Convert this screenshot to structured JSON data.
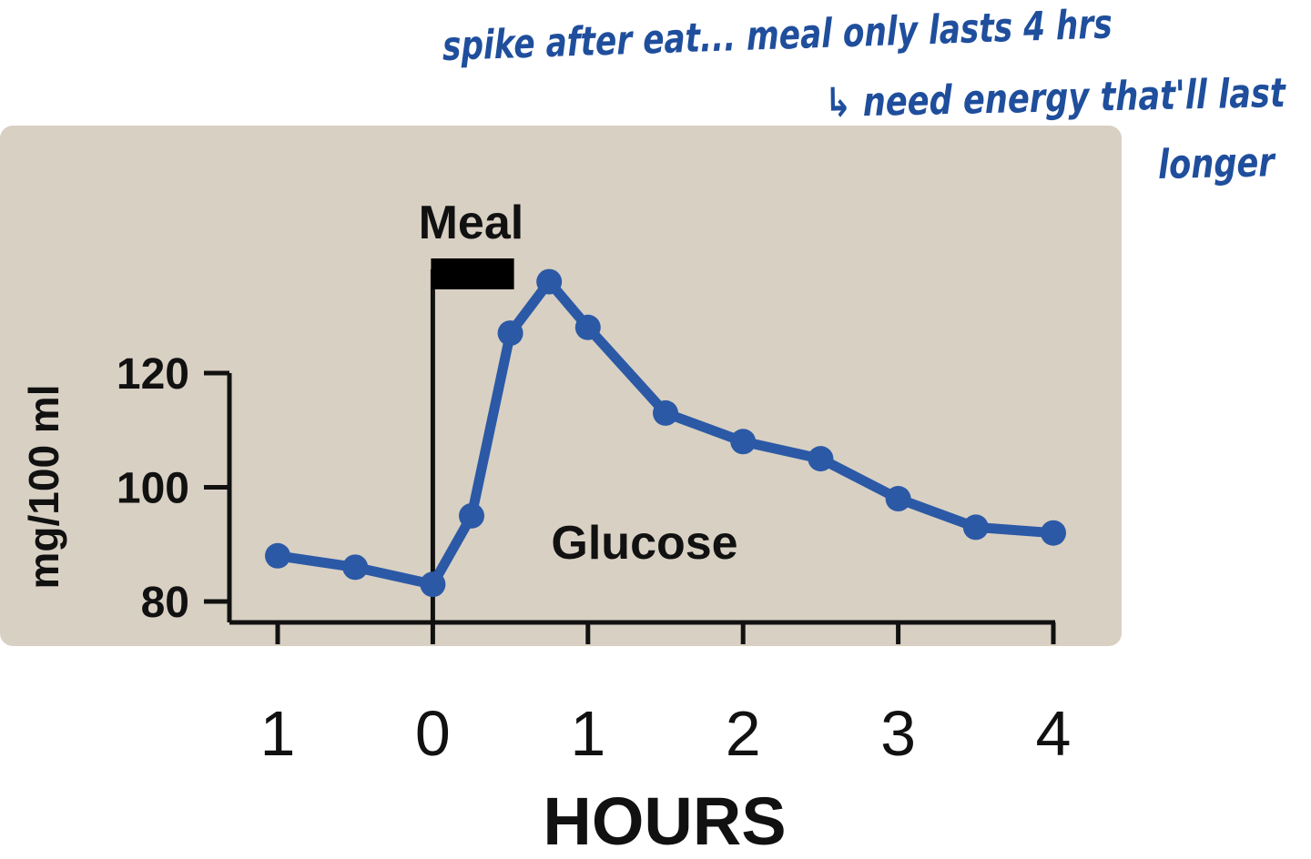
{
  "annotations": {
    "line1": "spike after eat... meal only lasts 4 hrs",
    "line2": "↳ need energy that'll last",
    "line3": "longer"
  },
  "colors": {
    "panel": "#d8d0c3",
    "series": "#2b59a6",
    "axis": "#111111",
    "annotation": "#1f4e9c"
  },
  "chart_data": {
    "type": "line",
    "title": "",
    "xlabel": "HOURS",
    "ylabel": "mg/100 ml",
    "xlim": [
      -1,
      4
    ],
    "ylim": [
      80,
      120
    ],
    "x_ticks": [
      -1,
      0,
      1,
      2,
      3,
      4
    ],
    "x_tick_labels": [
      "1",
      "0",
      "1",
      "2",
      "3",
      "4"
    ],
    "y_ticks": [
      80,
      100,
      120
    ],
    "y_tick_labels": [
      "80",
      "100",
      "120"
    ],
    "grid": false,
    "meal_annotation": {
      "label": "Meal",
      "start": 0,
      "end": 0.5
    },
    "series": [
      {
        "name": "Glucose",
        "x": [
          -1,
          -0.5,
          0,
          0.25,
          0.5,
          0.75,
          1,
          1.5,
          2,
          2.5,
          3,
          3.5,
          4
        ],
        "y": [
          88,
          86,
          83,
          95,
          127,
          136,
          128,
          113,
          108,
          105,
          98,
          93,
          92
        ]
      }
    ]
  }
}
